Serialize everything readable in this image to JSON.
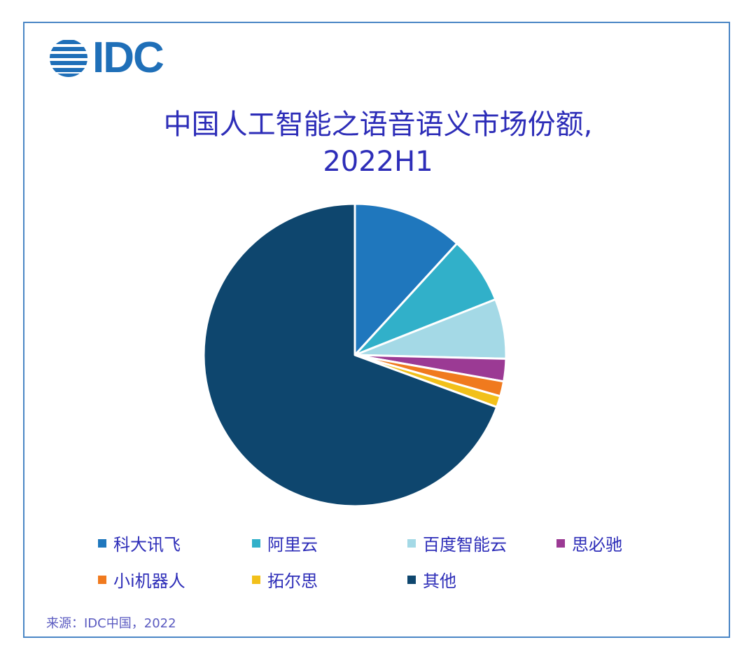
{
  "logo": {
    "text": "IDC",
    "icon": "idc-globe-icon",
    "color": "#1f6fb8"
  },
  "title": {
    "line1": "中国人工智能之语音语义市场份额,",
    "line2": "2022H1"
  },
  "legend": [
    {
      "label": "科大讯飞",
      "color": "#1f77bd"
    },
    {
      "label": "阿里云",
      "color": "#31b0c9"
    },
    {
      "label": "百度智能云",
      "color": "#a4d9e6"
    },
    {
      "label": "思必驰",
      "color": "#9b3a94"
    },
    {
      "label": "小i机器人",
      "color": "#f07a1e"
    },
    {
      "label": "拓尔思",
      "color": "#f2c01a"
    },
    {
      "label": "其他",
      "color": "#0e466e"
    }
  ],
  "source": "来源：IDC中国，2022",
  "chart_data": {
    "type": "pie",
    "title": "中国人工智能之语音语义市场份额, 2022H1",
    "categories": [
      "科大讯飞",
      "阿里云",
      "百度智能云",
      "思必驰",
      "小i机器人",
      "拓尔思",
      "其他"
    ],
    "values": [
      11.8,
      7.2,
      6.4,
      2.4,
      1.6,
      1.2,
      69.4
    ],
    "unit": "%",
    "colors": [
      "#1f77bd",
      "#31b0c9",
      "#a4d9e6",
      "#9b3a94",
      "#f07a1e",
      "#f2c01a",
      "#0e466e"
    ],
    "start_angle": "12 o'clock, clockwise",
    "legend_position": "bottom",
    "source": "来源：IDC中国，2022"
  }
}
